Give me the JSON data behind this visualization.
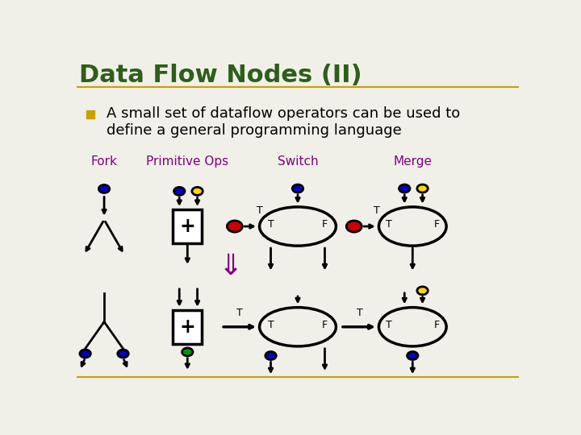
{
  "title": "Data Flow Nodes (II)",
  "title_color": "#2E5F1A",
  "title_fontsize": 22,
  "bullet_color": "#C8A000",
  "bullet_text_color": "#000000",
  "bullet_fontsize": 13,
  "header_line_color": "#C8A000",
  "footer_line_color": "#C8A000",
  "bg_color": "#F0F0E8",
  "label_color": "#800080",
  "label_fontsize": 11,
  "labels": [
    "Fork",
    "Primitive Ops",
    "Switch",
    "Merge"
  ],
  "blue": "#0000CC",
  "yellow": "#FFD700",
  "red": "#CC0000",
  "green": "#009900",
  "lw": 2.0,
  "elw": 2.5,
  "cr": 0.012
}
